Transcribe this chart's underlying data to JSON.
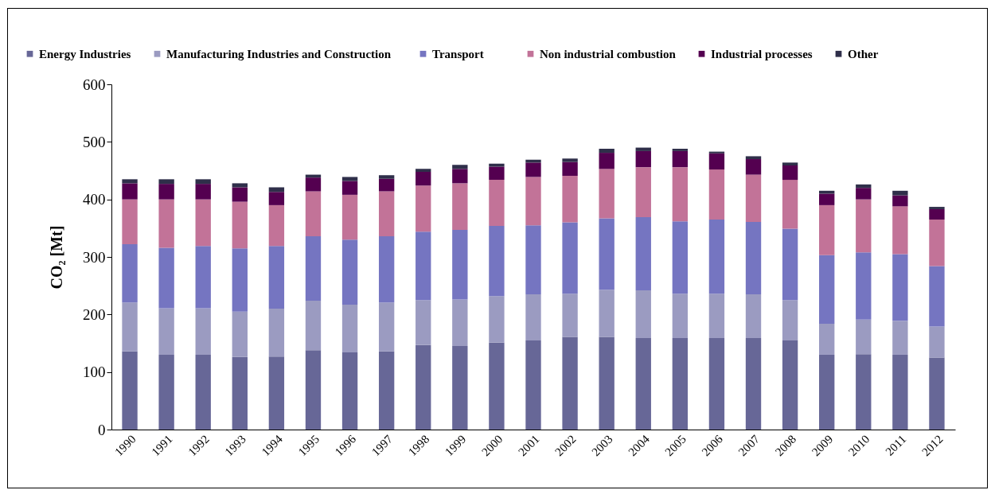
{
  "chart_data": {
    "type": "bar",
    "stacked": true,
    "ylabel": "CO₂ [Mt]",
    "categories": [
      "1990",
      "1991",
      "1992",
      "1993",
      "1994",
      "1995",
      "1996",
      "1997",
      "1998",
      "1999",
      "2000",
      "2001",
      "2002",
      "2003",
      "2004",
      "2005",
      "2006",
      "2007",
      "2008",
      "2009",
      "2010",
      "2011",
      "2012"
    ],
    "series": [
      {
        "name": "Energy Industries",
        "color": "#676797",
        "values": [
          136,
          130,
          130,
          126,
          127,
          138,
          134,
          136,
          147,
          145,
          151,
          155,
          161,
          161,
          159,
          159,
          159,
          159,
          155,
          130,
          131,
          130,
          125
        ]
      },
      {
        "name": "Manufacturing Industries  and  Construction",
        "color": "#9b9bc1",
        "values": [
          85,
          81,
          81,
          79,
          83,
          86,
          83,
          85,
          78,
          81,
          81,
          80,
          75,
          82,
          83,
          77,
          77,
          76,
          70,
          54,
          60,
          59,
          54
        ]
      },
      {
        "name": "Transport",
        "color": "#7575c1",
        "values": [
          101,
          105,
          108,
          110,
          109,
          112,
          113,
          115,
          119,
          121,
          122,
          120,
          124,
          124,
          127,
          126,
          129,
          126,
          124,
          119,
          117,
          116,
          105
        ]
      },
      {
        "name": "Non industrial combustion",
        "color": "#c27398",
        "values": [
          78,
          84,
          81,
          81,
          71,
          78,
          78,
          78,
          80,
          81,
          80,
          84,
          81,
          86,
          87,
          94,
          87,
          82,
          85,
          87,
          92,
          83,
          81
        ]
      },
      {
        "name": "Industrial processes",
        "color": "#540050",
        "values": [
          28,
          27,
          27,
          25,
          23,
          24,
          24,
          22,
          24,
          25,
          23,
          25,
          24,
          28,
          28,
          28,
          28,
          27,
          25,
          20,
          20,
          19,
          18
        ]
      },
      {
        "name": "Other",
        "color": "#2f2f4a",
        "values": [
          7,
          8,
          8,
          7,
          8,
          5,
          7,
          6,
          5,
          7,
          5,
          5,
          6,
          7,
          6,
          4,
          3,
          5,
          5,
          5,
          6,
          8,
          4
        ]
      }
    ],
    "ylim": [
      0,
      600
    ],
    "yticks": [
      0,
      100,
      200,
      300,
      400,
      500,
      600
    ],
    "grid": false,
    "legend": "top"
  }
}
